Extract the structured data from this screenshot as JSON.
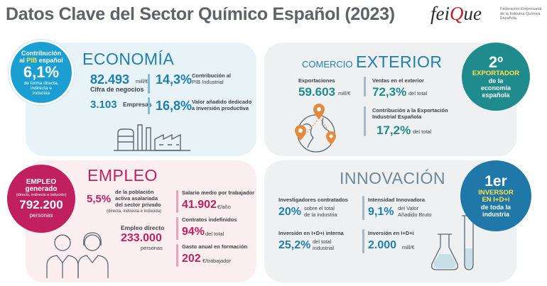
{
  "header": {
    "title": "Datos Clave del Sector Químico Español (2023)",
    "logo_word_a": "fei",
    "logo_word_b": "Q",
    "logo_word_c": "ue",
    "logo_tagline": "Federación Empresarial de la Industria Química Española"
  },
  "colors": {
    "economia": "#1e7fae",
    "empleo": "#c0205f",
    "comercio": "#1f8b8c",
    "innovacion": "#1f78a8"
  },
  "pib_badge": {
    "line1": "Contribución",
    "line2a": "al ",
    "line2b": "PIB",
    "line2c": " español",
    "value": "6,1%",
    "note1": "de forma directa,",
    "note2": "indirecta e",
    "note3": "inducida"
  },
  "economia": {
    "heading": "ECONOMÍA",
    "cifra_value": "82.493",
    "cifra_unit": "mill/€",
    "cifra_label": "Cifra de negocios",
    "pib_ind_value": "14,3%",
    "pib_ind_label1": "Contribución al",
    "pib_ind_label2": "PIB Industrial",
    "empresas_value": "3.103",
    "empresas_label": "Empresas",
    "vab_value": "16,8%",
    "vab_label1": "Valor añadido dedicado",
    "vab_label2": "a Inversión productiva",
    "icon": "factory-icon"
  },
  "comercio": {
    "heading_a": "COMERCIO",
    "heading_b": "EXTERIOR",
    "export_label": "Exportaciones",
    "export_value": "59.603",
    "export_unit": "mill/€",
    "ventas_label": "Ventas en el exterior",
    "ventas_value": "72,3%",
    "ventas_unit": "del total",
    "contrib_label1": "Contribución a la Exportación",
    "contrib_label2": "Industrial Española",
    "contrib_value": "17,2%",
    "contrib_unit": "del total",
    "icon": "globe-icon"
  },
  "export_badge": {
    "rank": "2º",
    "line1": "EXPORTADOR",
    "line2": "de la",
    "line3": "economía",
    "line4": "española"
  },
  "empleo_badge": {
    "line1": "EMPLEO",
    "line2": "generado",
    "note": "(directo, indirecto e inducido)",
    "value": "792.200",
    "unit": "personas"
  },
  "empleo": {
    "heading": "EMPLEO",
    "pob_value": "5,5%",
    "pob_label1": "de la población",
    "pob_label2": "activa asalariada",
    "pob_label3": "del sector privado",
    "pob_note": "(directa, indirecta e inducida)",
    "directo_label": "Empleo directo",
    "directo_value": "233.000",
    "directo_unit": "personas",
    "salario_label": "Salario medio por trabajador",
    "salario_value": "41.902",
    "salario_unit": "€/año",
    "contratos_label": "Contratos indefinidos",
    "contratos_value": "94%",
    "contratos_unit": "del total",
    "gasto_label": "Gasto anual en formación",
    "gasto_value": "202",
    "gasto_unit": "€/trabajador",
    "icon": "workers-icon"
  },
  "innovacion": {
    "heading": "INNOVACIÓN",
    "invest_label": "Investigadores contratados",
    "invest_value": "20%",
    "invest_unit1": "sobre el total",
    "invest_unit2": "de la industria",
    "intens_label": "Intensidad Innovadora",
    "intens_value": "9,1%",
    "intens_unit1": "del Valor",
    "intens_unit2": "Añadido Bruto",
    "inv_int_label": "Inversión en I+D+i interna",
    "inv_int_value": "25,2%",
    "inv_int_unit1": "del total",
    "inv_int_unit2": "industrial",
    "inv_label": "Inversión en I+D+i",
    "inv_value": "2.000",
    "inv_unit": "mill/€",
    "icon": "flask-icon"
  },
  "innov_badge": {
    "rank": "1er",
    "line1": "INVERSOR",
    "line2": "EN I+D+i",
    "line3": "de toda la",
    "line4": "industria"
  }
}
